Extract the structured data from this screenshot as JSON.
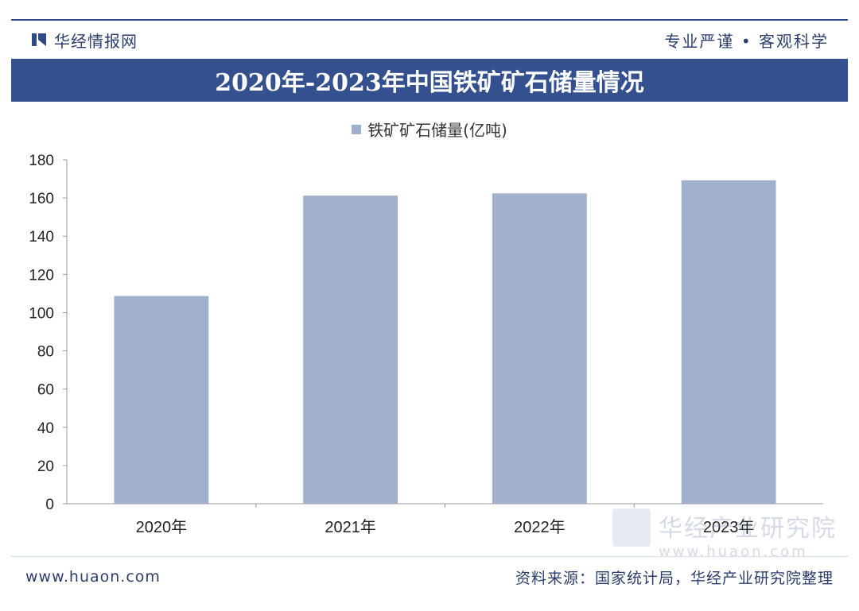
{
  "header": {
    "brand_name": "华经情报网",
    "slogan": "专业严谨 • 客观科学"
  },
  "footer": {
    "url": "www.huaon.com",
    "source": "资料来源：国家统计局，华经产业研究院整理"
  },
  "watermark": {
    "name": "华经产业研究院",
    "url": "www.huaon.com"
  },
  "colors": {
    "brand": "#34508f",
    "bar": "#a2b1cb"
  },
  "chart_data": {
    "type": "bar",
    "title": "2020年-2023年中国铁矿矿石储量情况",
    "categories": [
      "2020年",
      "2021年",
      "2022年",
      "2023年"
    ],
    "series": [
      {
        "name": "铁矿矿石储量(亿吨)",
        "values": [
          108.7,
          161.2,
          162.4,
          169.2
        ]
      }
    ],
    "ylim": [
      0,
      180
    ],
    "yticks": [
      0,
      20,
      40,
      60,
      80,
      100,
      120,
      140,
      160,
      180
    ],
    "legend_position": "top-center",
    "grid": false
  }
}
